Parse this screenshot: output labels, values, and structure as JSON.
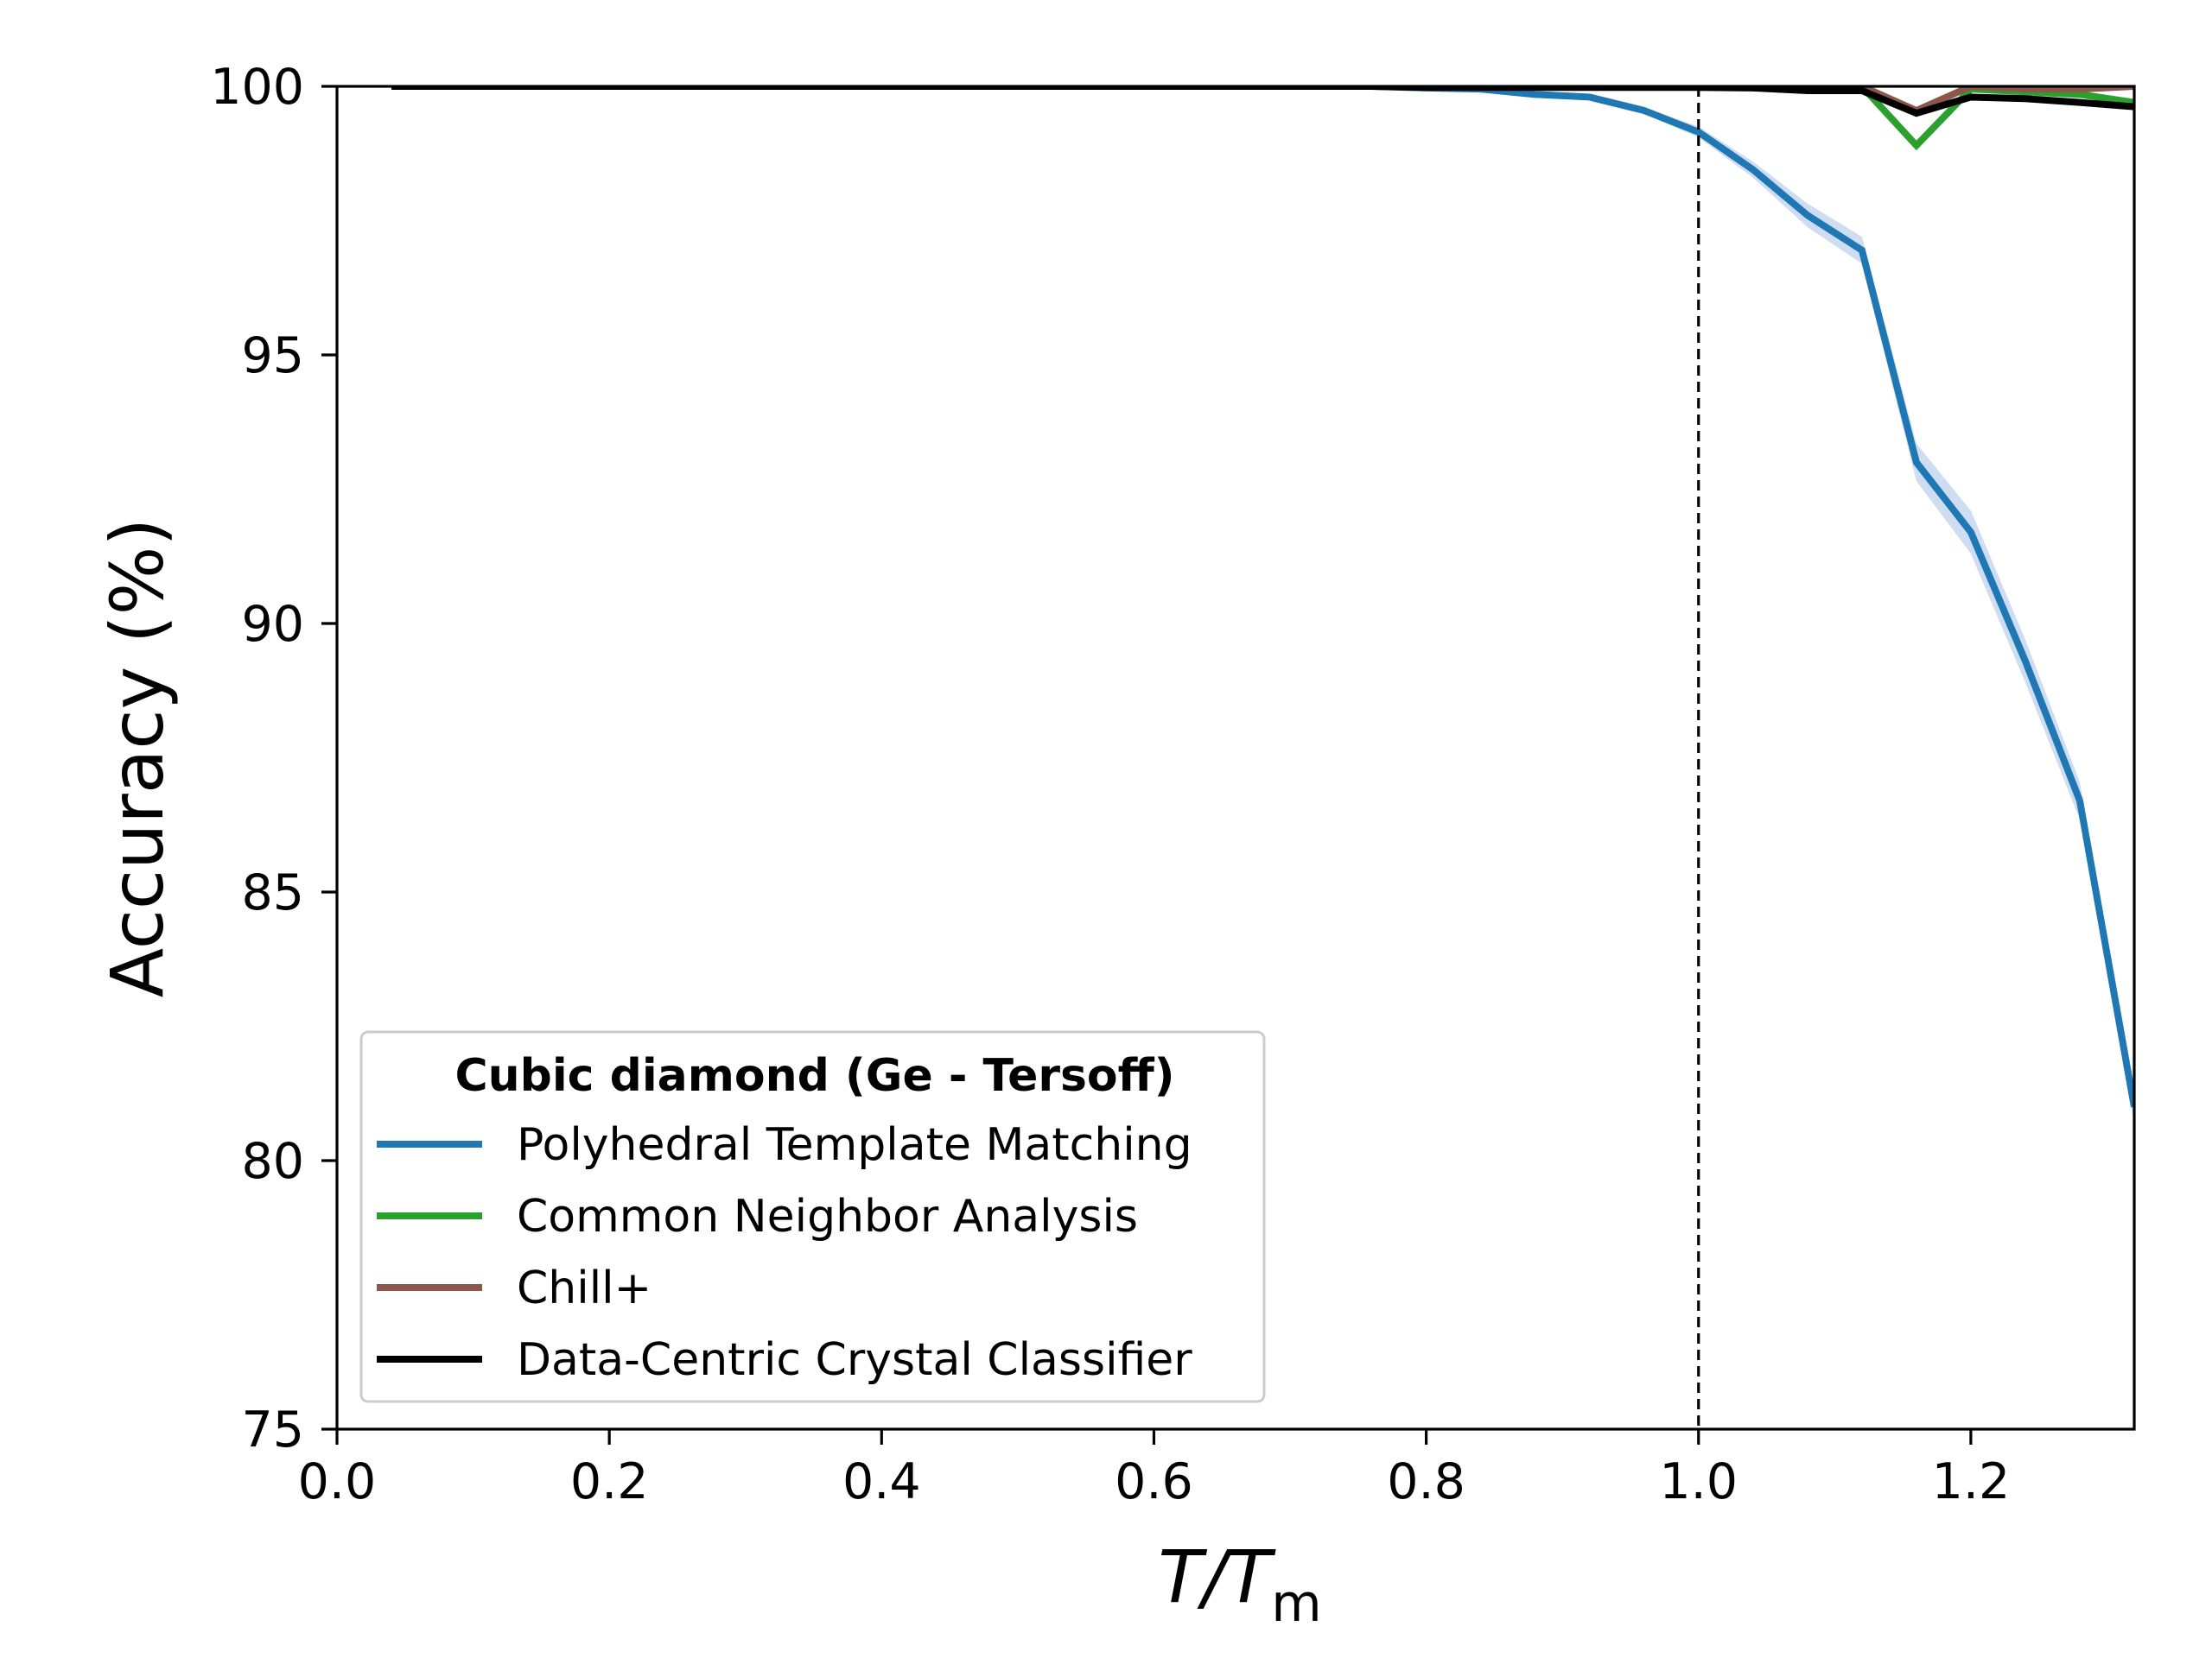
{
  "chart_data": {
    "type": "line",
    "title": "",
    "xlabel": {
      "main": "T/T",
      "subscript": "m"
    },
    "ylabel": "Accuracy (%)",
    "xlim": [
      0.0,
      1.32
    ],
    "ylim": [
      75,
      100
    ],
    "xticks": [
      0.0,
      0.2,
      0.4,
      0.6,
      0.8,
      1.0,
      1.2
    ],
    "xtick_labels": [
      "0.0",
      "0.2",
      "0.4",
      "0.6",
      "0.8",
      "1.0",
      "1.2"
    ],
    "yticks": [
      75,
      80,
      85,
      90,
      95,
      100
    ],
    "ytick_labels": [
      "75",
      "80",
      "85",
      "90",
      "95",
      "100"
    ],
    "grid": false,
    "reference_line": {
      "x": 1.0,
      "style": "dashed",
      "color": "#000000"
    },
    "legend": {
      "title": "Cubic diamond (Ge - Tersoff)",
      "placement": "lower-left"
    },
    "x": [
      0.04,
      0.08,
      0.12,
      0.16,
      0.2,
      0.24,
      0.28,
      0.32,
      0.36,
      0.4,
      0.44,
      0.48,
      0.52,
      0.56,
      0.6,
      0.64,
      0.68,
      0.72,
      0.76,
      0.8,
      0.84,
      0.88,
      0.92,
      0.96,
      1.0,
      1.04,
      1.08,
      1.12,
      1.16,
      1.2,
      1.24,
      1.28,
      1.32
    ],
    "series": [
      {
        "name": "Polyhedral Template Matching",
        "color": "#1f77b4",
        "band_color": "#aec7e8",
        "values": [
          100,
          100,
          100,
          100,
          100,
          100,
          100,
          100,
          100,
          100,
          100,
          100,
          100,
          100,
          100,
          100,
          100,
          100,
          100,
          99.97,
          99.95,
          99.85,
          99.8,
          99.55,
          99.15,
          98.45,
          97.6,
          96.95,
          93.0,
          91.7,
          89.3,
          86.7,
          81.0
        ],
        "band": [
          0.05,
          0.05,
          0.05,
          0.05,
          0.05,
          0.05,
          0.05,
          0.05,
          0.05,
          0.05,
          0.05,
          0.05,
          0.05,
          0.05,
          0.05,
          0.05,
          0.05,
          0.05,
          0.05,
          0.05,
          0.05,
          0.05,
          0.05,
          0.06,
          0.1,
          0.15,
          0.22,
          0.25,
          0.35,
          0.4,
          0.4,
          0.35,
          0.3
        ]
      },
      {
        "name": "Common Neighbor Analysis",
        "color": "#2ca02c",
        "values": [
          100,
          100,
          100,
          100,
          100,
          100,
          100,
          100,
          100,
          100,
          100,
          100,
          100,
          100,
          100,
          100,
          100,
          100,
          100,
          100,
          100,
          100,
          100,
          100,
          100,
          100,
          100,
          100,
          98.9,
          99.95,
          99.9,
          99.85,
          99.7
        ]
      },
      {
        "name": "Chill+",
        "color": "#8c564b",
        "values": [
          100,
          100,
          100,
          100,
          100,
          100,
          100,
          100,
          100,
          100,
          100,
          100,
          100,
          100,
          100,
          100,
          100,
          100,
          100,
          100,
          100,
          100,
          100,
          100,
          100,
          100,
          100,
          100,
          99.55,
          100,
          99.95,
          99.95,
          100
        ]
      },
      {
        "name": "Data-Centric Crystal Classifier",
        "color": "#000000",
        "values": [
          100,
          100,
          100,
          100,
          100,
          100,
          100,
          100,
          100,
          100,
          100,
          100,
          100,
          100,
          100,
          100,
          100,
          100,
          100,
          99.98,
          99.98,
          99.98,
          99.98,
          99.98,
          99.98,
          99.97,
          99.92,
          99.92,
          99.5,
          99.8,
          99.77,
          99.7,
          99.62
        ]
      }
    ]
  }
}
